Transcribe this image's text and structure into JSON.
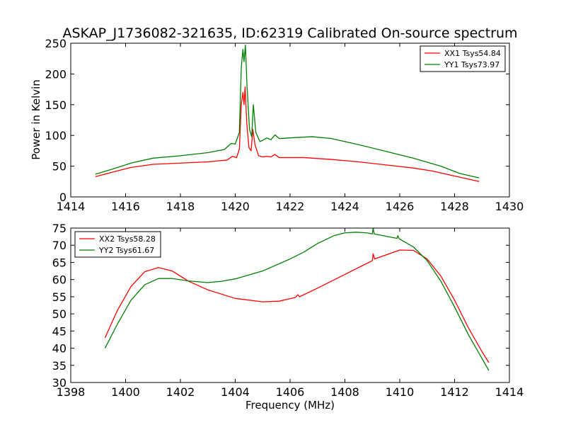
{
  "chart_data": [
    {
      "type": "line",
      "title": "ASKAP_J1736082-321635, ID:62319 Calibrated On-source spectrum",
      "xlabel": "",
      "ylabel": "Power in Kelvin",
      "xlim": [
        1414,
        1430
      ],
      "ylim": [
        0,
        250
      ],
      "xticks": [
        1414,
        1416,
        1418,
        1420,
        1422,
        1424,
        1426,
        1428,
        1430
      ],
      "yticks": [
        0,
        50,
        100,
        150,
        200,
        250
      ],
      "grid": false,
      "legend_position": "top-right",
      "series": [
        {
          "name": "XX1 Tsys54.84",
          "color": "#ff0000",
          "points": [
            [
              1414.9,
              33
            ],
            [
              1415.5,
              40
            ],
            [
              1416.2,
              48
            ],
            [
              1417.0,
              53
            ],
            [
              1418.0,
              55
            ],
            [
              1419.0,
              57
            ],
            [
              1419.7,
              60
            ],
            [
              1419.9,
              66
            ],
            [
              1420.05,
              64
            ],
            [
              1420.15,
              78
            ],
            [
              1420.22,
              150
            ],
            [
              1420.28,
              170
            ],
            [
              1420.32,
              150
            ],
            [
              1420.36,
              179
            ],
            [
              1420.42,
              120
            ],
            [
              1420.5,
              80
            ],
            [
              1420.58,
              75
            ],
            [
              1420.64,
              110
            ],
            [
              1420.72,
              85
            ],
            [
              1420.85,
              67
            ],
            [
              1421.0,
              65
            ],
            [
              1421.15,
              66
            ],
            [
              1421.3,
              65
            ],
            [
              1421.45,
              69
            ],
            [
              1421.6,
              64
            ],
            [
              1422.5,
              64
            ],
            [
              1423.5,
              61
            ],
            [
              1424.5,
              57
            ],
            [
              1425.5,
              52
            ],
            [
              1426.5,
              47
            ],
            [
              1427.2,
              42
            ],
            [
              1428.0,
              34
            ],
            [
              1428.9,
              25
            ]
          ]
        },
        {
          "name": "YY1 Tsys73.97",
          "color": "#008000",
          "points": [
            [
              1414.9,
              37
            ],
            [
              1415.5,
              45
            ],
            [
              1416.2,
              55
            ],
            [
              1417.0,
              63
            ],
            [
              1418.0,
              67
            ],
            [
              1419.0,
              72
            ],
            [
              1419.6,
              77
            ],
            [
              1419.85,
              87
            ],
            [
              1420.0,
              86
            ],
            [
              1420.15,
              105
            ],
            [
              1420.22,
              210
            ],
            [
              1420.28,
              240
            ],
            [
              1420.32,
              220
            ],
            [
              1420.37,
              247
            ],
            [
              1420.43,
              180
            ],
            [
              1420.52,
              110
            ],
            [
              1420.6,
              98
            ],
            [
              1420.66,
              150
            ],
            [
              1420.75,
              105
            ],
            [
              1420.9,
              90
            ],
            [
              1421.0,
              92
            ],
            [
              1421.15,
              96
            ],
            [
              1421.3,
              93
            ],
            [
              1421.45,
              101
            ],
            [
              1421.6,
              95
            ],
            [
              1422.0,
              96
            ],
            [
              1422.8,
              98
            ],
            [
              1423.5,
              95
            ],
            [
              1424.5,
              85
            ],
            [
              1425.5,
              74
            ],
            [
              1426.5,
              63
            ],
            [
              1427.5,
              50
            ],
            [
              1428.2,
              38
            ],
            [
              1428.9,
              31
            ]
          ]
        }
      ]
    },
    {
      "type": "line",
      "title": "",
      "xlabel": "Frequency (MHz)",
      "ylabel": "",
      "xlim": [
        1398,
        1414
      ],
      "ylim": [
        30,
        75
      ],
      "xticks": [
        1398,
        1400,
        1402,
        1404,
        1406,
        1408,
        1410,
        1412,
        1414
      ],
      "yticks": [
        30,
        35,
        40,
        45,
        50,
        55,
        60,
        65,
        70,
        75
      ],
      "grid": false,
      "legend_position": "top-left",
      "series": [
        {
          "name": "XX2 Tsys58.28",
          "color": "#ff0000",
          "points": [
            [
              1399.25,
              43
            ],
            [
              1399.7,
              51
            ],
            [
              1400.2,
              58
            ],
            [
              1400.7,
              62.3
            ],
            [
              1401.2,
              63.5
            ],
            [
              1401.7,
              62.5
            ],
            [
              1402.3,
              59.5
            ],
            [
              1403.0,
              57
            ],
            [
              1404.0,
              54.5
            ],
            [
              1405.0,
              53.5
            ],
            [
              1405.6,
              53.7
            ],
            [
              1406.2,
              54.8
            ],
            [
              1406.28,
              55.6
            ],
            [
              1406.35,
              55
            ],
            [
              1407.0,
              57.5
            ],
            [
              1408.0,
              61.5
            ],
            [
              1409.0,
              65.5
            ],
            [
              1409.03,
              67.5
            ],
            [
              1409.08,
              66
            ],
            [
              1410.0,
              68.6
            ],
            [
              1410.5,
              68.5
            ],
            [
              1411.0,
              66
            ],
            [
              1411.5,
              61
            ],
            [
              1412.0,
              54
            ],
            [
              1412.5,
              46
            ],
            [
              1413.0,
              39
            ],
            [
              1413.25,
              35.8
            ]
          ]
        },
        {
          "name": "YY2 Tsys61.67",
          "color": "#008000",
          "points": [
            [
              1399.25,
              40
            ],
            [
              1399.7,
              47
            ],
            [
              1400.2,
              54
            ],
            [
              1400.7,
              58.5
            ],
            [
              1401.2,
              60.3
            ],
            [
              1401.7,
              60.3
            ],
            [
              1402.3,
              59.6
            ],
            [
              1403.0,
              59.1
            ],
            [
              1403.5,
              59.5
            ],
            [
              1404.0,
              60.2
            ],
            [
              1405.0,
              62.5
            ],
            [
              1406.0,
              66
            ],
            [
              1406.5,
              68
            ],
            [
              1407.0,
              70.5
            ],
            [
              1407.6,
              72.8
            ],
            [
              1408.0,
              73.6
            ],
            [
              1408.4,
              73.8
            ],
            [
              1408.8,
              73.6
            ],
            [
              1409.0,
              73.3
            ],
            [
              1409.03,
              75
            ],
            [
              1409.07,
              73.3
            ],
            [
              1409.9,
              72
            ],
            [
              1409.93,
              72.8
            ],
            [
              1409.98,
              71.9
            ],
            [
              1410.5,
              69.5
            ],
            [
              1411.0,
              65.5
            ],
            [
              1411.5,
              59.5
            ],
            [
              1412.0,
              52
            ],
            [
              1412.5,
              44
            ],
            [
              1413.0,
              37
            ],
            [
              1413.25,
              33.5
            ]
          ]
        }
      ]
    }
  ]
}
